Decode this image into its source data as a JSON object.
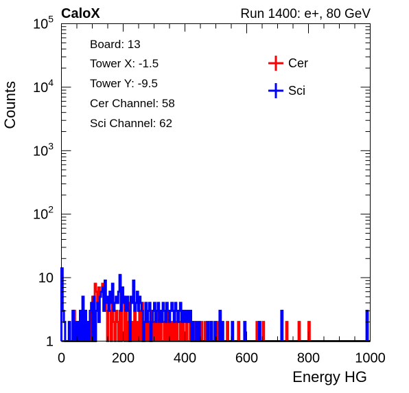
{
  "header": {
    "left": "CaloX",
    "right": "Run 1400: e+, 80 GeV"
  },
  "info": [
    "Board: 13",
    "Tower X: -1.5",
    "Tower Y: -9.5",
    "Cer Channel: 58",
    "Sci Channel: 62"
  ],
  "chart_data": {
    "type": "histogram",
    "xlabel": "Energy HG",
    "ylabel": "Counts",
    "xlim": [
      0,
      1000
    ],
    "ylim": [
      1,
      100000
    ],
    "yscale": "log",
    "grid": false,
    "legend_position": "top-right",
    "x_ticks": [
      "0",
      "200",
      "400",
      "600",
      "800",
      "1000"
    ],
    "y_ticks": [
      {
        "base": "1",
        "exp": ""
      },
      {
        "base": "10",
        "exp": ""
      },
      {
        "base": "10",
        "exp": "2"
      },
      {
        "base": "10",
        "exp": "3"
      },
      {
        "base": "10",
        "exp": "4"
      },
      {
        "base": "10",
        "exp": "5"
      }
    ],
    "bin_width": 4,
    "series": [
      {
        "name": "Cer",
        "color": "#ff0000",
        "bins": [
          [
            40,
            3
          ],
          [
            44,
            2
          ],
          [
            56,
            2
          ],
          [
            64,
            2
          ],
          [
            72,
            2
          ],
          [
            84,
            2
          ],
          [
            96,
            3
          ],
          [
            100,
            5
          ],
          [
            104,
            3
          ],
          [
            108,
            8
          ],
          [
            112,
            6
          ],
          [
            116,
            4
          ],
          [
            120,
            7
          ],
          [
            124,
            5
          ],
          [
            128,
            6
          ],
          [
            132,
            8
          ],
          [
            136,
            5
          ],
          [
            140,
            4
          ],
          [
            144,
            3
          ],
          [
            152,
            4
          ],
          [
            156,
            3
          ],
          [
            164,
            5
          ],
          [
            168,
            2
          ],
          [
            176,
            3
          ],
          [
            180,
            2
          ],
          [
            188,
            3
          ],
          [
            196,
            6
          ],
          [
            200,
            5
          ],
          [
            208,
            3
          ],
          [
            216,
            2
          ],
          [
            220,
            4
          ],
          [
            228,
            2
          ],
          [
            236,
            3
          ],
          [
            244,
            2
          ],
          [
            252,
            3
          ],
          [
            260,
            4
          ],
          [
            272,
            3
          ],
          [
            280,
            2
          ],
          [
            288,
            3
          ],
          [
            296,
            2
          ],
          [
            304,
            2
          ],
          [
            312,
            3
          ],
          [
            320,
            2
          ],
          [
            332,
            2
          ],
          [
            340,
            3
          ],
          [
            348,
            2
          ],
          [
            356,
            2
          ],
          [
            364,
            3
          ],
          [
            372,
            2
          ],
          [
            384,
            2
          ],
          [
            392,
            2
          ],
          [
            404,
            2
          ],
          [
            416,
            2
          ],
          [
            428,
            2
          ],
          [
            452,
            2
          ],
          [
            464,
            2
          ],
          [
            480,
            2
          ],
          [
            504,
            2
          ],
          [
            536,
            2
          ],
          [
            572,
            2
          ],
          [
            632,
            2
          ],
          [
            652,
            2
          ],
          [
            728,
            2
          ],
          [
            768,
            2
          ],
          [
            800,
            2
          ]
        ]
      },
      {
        "name": "Sci",
        "color": "#0000ff",
        "bins": [
          [
            0,
            14
          ],
          [
            4,
            3
          ],
          [
            8,
            2
          ],
          [
            24,
            2
          ],
          [
            36,
            3
          ],
          [
            44,
            2
          ],
          [
            52,
            2
          ],
          [
            60,
            3
          ],
          [
            68,
            5
          ],
          [
            76,
            3
          ],
          [
            84,
            2
          ],
          [
            92,
            3
          ],
          [
            96,
            4
          ],
          [
            104,
            5
          ],
          [
            112,
            3
          ],
          [
            116,
            4
          ],
          [
            120,
            2
          ],
          [
            124,
            5
          ],
          [
            128,
            6
          ],
          [
            132,
            7
          ],
          [
            136,
            3
          ],
          [
            140,
            9
          ],
          [
            144,
            4
          ],
          [
            148,
            5
          ],
          [
            152,
            3
          ],
          [
            156,
            6
          ],
          [
            160,
            4
          ],
          [
            164,
            8
          ],
          [
            168,
            3
          ],
          [
            172,
            4
          ],
          [
            176,
            5
          ],
          [
            180,
            4
          ],
          [
            184,
            6
          ],
          [
            188,
            11
          ],
          [
            192,
            3
          ],
          [
            196,
            7
          ],
          [
            200,
            4
          ],
          [
            204,
            5
          ],
          [
            208,
            3
          ],
          [
            212,
            5
          ],
          [
            216,
            3
          ],
          [
            224,
            5
          ],
          [
            228,
            4
          ],
          [
            232,
            9
          ],
          [
            236,
            3
          ],
          [
            240,
            4
          ],
          [
            244,
            6
          ],
          [
            248,
            3
          ],
          [
            252,
            5
          ],
          [
            256,
            4
          ],
          [
            260,
            3
          ],
          [
            268,
            2
          ],
          [
            272,
            4
          ],
          [
            276,
            2
          ],
          [
            280,
            3
          ],
          [
            284,
            4
          ],
          [
            292,
            2
          ],
          [
            296,
            3
          ],
          [
            300,
            4
          ],
          [
            304,
            2
          ],
          [
            308,
            3
          ],
          [
            312,
            4
          ],
          [
            316,
            2
          ],
          [
            320,
            3
          ],
          [
            324,
            2
          ],
          [
            328,
            4
          ],
          [
            332,
            3
          ],
          [
            336,
            2
          ],
          [
            340,
            4
          ],
          [
            344,
            3
          ],
          [
            348,
            2
          ],
          [
            352,
            3
          ],
          [
            356,
            4
          ],
          [
            360,
            3
          ],
          [
            364,
            2
          ],
          [
            368,
            4
          ],
          [
            372,
            3
          ],
          [
            376,
            2
          ],
          [
            380,
            3
          ],
          [
            384,
            4
          ],
          [
            388,
            2
          ],
          [
            392,
            3
          ],
          [
            396,
            2
          ],
          [
            400,
            3
          ],
          [
            404,
            2
          ],
          [
            408,
            3
          ],
          [
            412,
            2
          ],
          [
            416,
            3
          ],
          [
            424,
            2
          ],
          [
            436,
            2
          ],
          [
            444,
            2
          ],
          [
            472,
            2
          ],
          [
            484,
            2
          ],
          [
            496,
            2
          ],
          [
            512,
            3
          ],
          [
            520,
            2
          ],
          [
            552,
            2
          ],
          [
            592,
            2
          ],
          [
            640,
            2
          ],
          [
            712,
            3
          ],
          [
            988,
            3
          ]
        ]
      }
    ]
  }
}
